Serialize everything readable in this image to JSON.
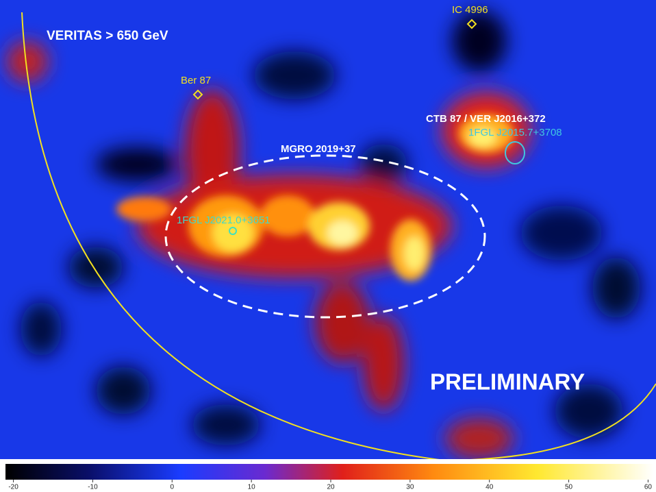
{
  "image": {
    "title": "VERITAS > 650 GeV",
    "watermark": "PRELIMINARY",
    "sources": {
      "ic4996": "IC 4996",
      "ber87": "Ber 87",
      "ctb87": "CTB 87 / VER J2016+372",
      "fgl_a": "1FGL J2015.7+3708",
      "mgro": "MGRO 2019+37",
      "fgl_b": "1FGL J2021.0+3651"
    }
  },
  "colorbar": {
    "lim": [
      -21,
      61
    ],
    "ticks": [
      -20,
      -10,
      0,
      10,
      20,
      30,
      40,
      50,
      60
    ]
  }
}
